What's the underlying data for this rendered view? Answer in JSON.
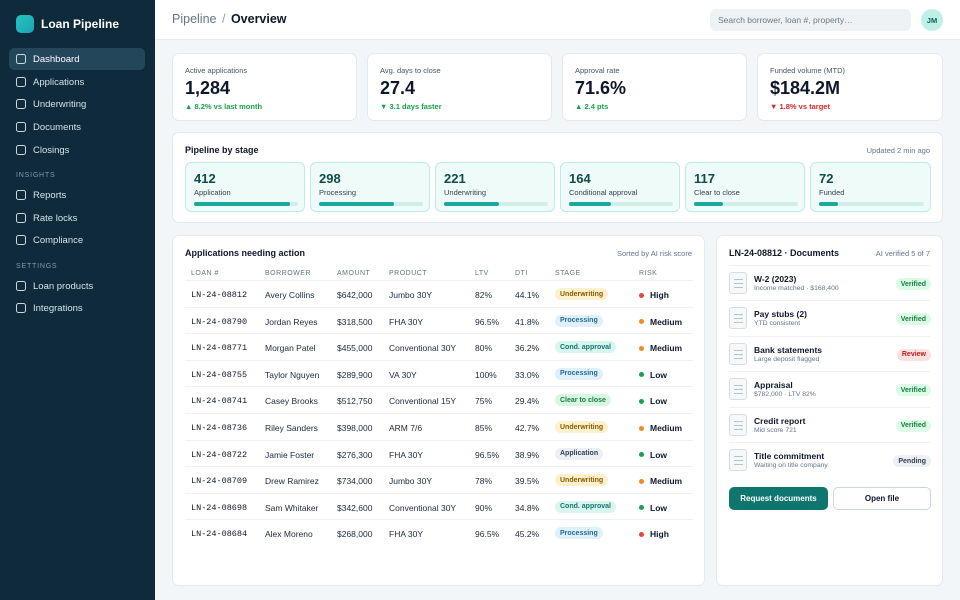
{
  "app": {
    "name": "Loan Pipeline",
    "logo_icon": "loan-pipeline-logo-icon"
  },
  "sidebar": {
    "main_items": [
      {
        "label": "Dashboard",
        "active": true
      },
      {
        "label": "Applications"
      },
      {
        "label": "Underwriting"
      },
      {
        "label": "Documents"
      },
      {
        "label": "Closings"
      }
    ],
    "insights_title": "INSIGHTS",
    "insights_items": [
      {
        "label": "Reports"
      },
      {
        "label": "Rate locks"
      },
      {
        "label": "Compliance"
      }
    ],
    "settings_title": "SETTINGS",
    "settings_items": [
      {
        "label": "Loan products"
      },
      {
        "label": "Integrations"
      }
    ]
  },
  "header": {
    "breadcrumb_parent": "Pipeline",
    "breadcrumb_sep": "/",
    "breadcrumb_current": "Overview",
    "search_placeholder": "Search borrower, loan #, property…",
    "avatar_initials": "JM"
  },
  "kpis": [
    {
      "label": "Active applications",
      "value": "1,284",
      "delta": "▲ 8.2% vs last month",
      "trend": "up"
    },
    {
      "label": "Avg. days to close",
      "value": "27.4",
      "delta": "▼ 3.1 days faster",
      "trend": "up"
    },
    {
      "label": "Approval rate",
      "value": "71.6%",
      "delta": "▲ 2.4 pts",
      "trend": "up"
    },
    {
      "label": "Funded volume (MTD)",
      "value": "$184.2M",
      "delta": "▼ 1.8% vs target",
      "trend": "down"
    }
  ],
  "pipeline": {
    "title": "Pipeline by stage",
    "updated": "Updated 2 min ago",
    "stages": [
      {
        "count": "412",
        "label": "Application",
        "progress": 0.92
      },
      {
        "count": "298",
        "label": "Processing",
        "progress": 0.72
      },
      {
        "count": "221",
        "label": "Underwriting",
        "progress": 0.53
      },
      {
        "count": "164",
        "label": "Conditional approval",
        "progress": 0.4
      },
      {
        "count": "117",
        "label": "Clear to close",
        "progress": 0.28
      },
      {
        "count": "72",
        "label": "Funded",
        "progress": 0.18
      }
    ]
  },
  "applications": {
    "title": "Applications needing action",
    "sort_label": "Sorted by AI risk score",
    "columns": [
      "LOAN #",
      "BORROWER",
      "AMOUNT",
      "PRODUCT",
      "LTV",
      "DTI",
      "STAGE",
      "RISK"
    ],
    "rows": [
      {
        "loan": "LN-24-08812",
        "borrower": "Avery Collins",
        "amount": "$642,000",
        "product": "Jumbo 30Y",
        "ltv": "82%",
        "dti": "44.1%",
        "stage": "Underwriting",
        "stage_kind": "underwriting",
        "risk": "High"
      },
      {
        "loan": "LN-24-08790",
        "borrower": "Jordan Reyes",
        "amount": "$318,500",
        "product": "FHA 30Y",
        "ltv": "96.5%",
        "dti": "41.8%",
        "stage": "Processing",
        "stage_kind": "processing",
        "risk": "Medium"
      },
      {
        "loan": "LN-24-08771",
        "borrower": "Morgan Patel",
        "amount": "$455,000",
        "product": "Conventional 30Y",
        "ltv": "80%",
        "dti": "36.2%",
        "stage": "Cond. approval",
        "stage_kind": "cond",
        "risk": "Medium"
      },
      {
        "loan": "LN-24-08755",
        "borrower": "Taylor Nguyen",
        "amount": "$289,900",
        "product": "VA 30Y",
        "ltv": "100%",
        "dti": "33.0%",
        "stage": "Processing",
        "stage_kind": "processing",
        "risk": "Low"
      },
      {
        "loan": "LN-24-08741",
        "borrower": "Casey Brooks",
        "amount": "$512,750",
        "product": "Conventional 15Y",
        "ltv": "75%",
        "dti": "29.4%",
        "stage": "Clear to close",
        "stage_kind": "ctc",
        "risk": "Low"
      },
      {
        "loan": "LN-24-08736",
        "borrower": "Riley Sanders",
        "amount": "$398,000",
        "product": "ARM 7/6",
        "ltv": "85%",
        "dti": "42.7%",
        "stage": "Underwriting",
        "stage_kind": "underwriting",
        "risk": "Medium"
      },
      {
        "loan": "LN-24-08722",
        "borrower": "Jamie Foster",
        "amount": "$276,300",
        "product": "FHA 30Y",
        "ltv": "96.5%",
        "dti": "38.9%",
        "stage": "Application",
        "stage_kind": "application",
        "risk": "Low"
      },
      {
        "loan": "LN-24-08709",
        "borrower": "Drew Ramirez",
        "amount": "$734,000",
        "product": "Jumbo 30Y",
        "ltv": "78%",
        "dti": "39.5%",
        "stage": "Underwriting",
        "stage_kind": "underwriting",
        "risk": "Medium"
      },
      {
        "loan": "LN-24-08698",
        "borrower": "Sam Whitaker",
        "amount": "$342,600",
        "product": "Conventional 30Y",
        "ltv": "90%",
        "dti": "34.8%",
        "stage": "Cond. approval",
        "stage_kind": "cond",
        "risk": "Low"
      },
      {
        "loan": "LN-24-08684",
        "borrower": "Alex Moreno",
        "amount": "$268,000",
        "product": "FHA 30Y",
        "ltv": "96.5%",
        "dti": "45.2%",
        "stage": "Processing",
        "stage_kind": "processing",
        "risk": "High"
      }
    ]
  },
  "documents": {
    "title": "LN-24-08812 · Documents",
    "ai_status": "AI verified 5 of 7",
    "items": [
      {
        "name": "W-2 (2023)",
        "detail": "Income matched · $168,400",
        "status": "Verified",
        "kind": "verified"
      },
      {
        "name": "Pay stubs (2)",
        "detail": "YTD consistent",
        "status": "Verified",
        "kind": "verified"
      },
      {
        "name": "Bank statements",
        "detail": "Large deposit flagged",
        "status": "Review",
        "kind": "review"
      },
      {
        "name": "Appraisal",
        "detail": "$782,000 · LTV 82%",
        "status": "Verified",
        "kind": "verified"
      },
      {
        "name": "Credit report",
        "detail": "Mid score 721",
        "status": "Verified",
        "kind": "verified"
      },
      {
        "name": "Title commitment",
        "detail": "Waiting on title company",
        "status": "Pending",
        "kind": "pending"
      }
    ],
    "primary_button": "Request documents",
    "secondary_button": "Open file"
  },
  "colors": {
    "sidebar_bg": "#0e2a3b",
    "accent": "#0f766e",
    "risk_high": "#e5483b",
    "risk_medium": "#f08a24",
    "risk_low": "#16a34a"
  }
}
